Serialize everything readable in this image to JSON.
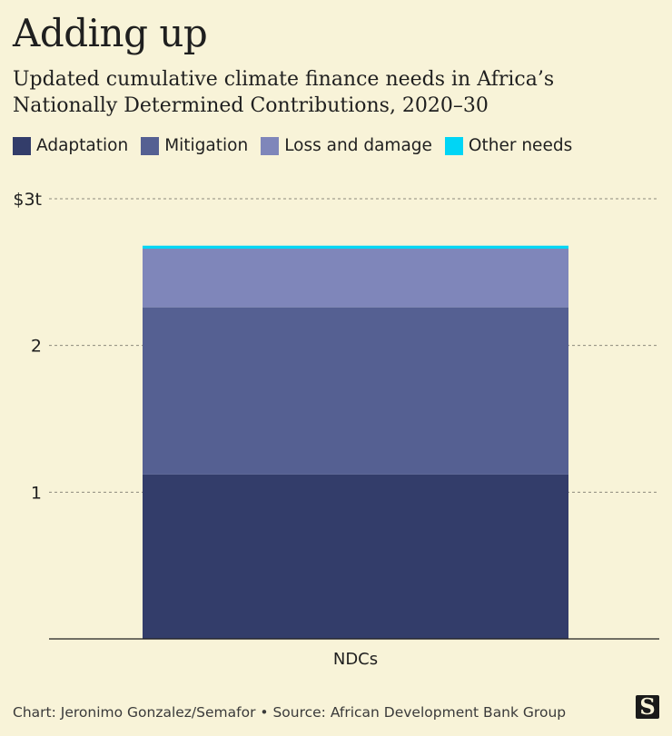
{
  "title": "Adding up",
  "subtitle": "Updated cumulative climate finance needs in Africa’s Nationally Determined Contributions, 2020–30",
  "footer": "Chart: Jeronimo Gonzalez/Semafor • Source: African Development Bank Group",
  "logo": "S",
  "colors": {
    "background": "#f8f3d8",
    "adaptation": "#333d6a",
    "mitigation": "#556092",
    "loss_and_damage": "#7f86ba",
    "other_needs": "#00d5f5"
  },
  "chart_data": {
    "type": "bar",
    "stacked": true,
    "title": "Adding up",
    "categories": [
      "NDCs"
    ],
    "series": [
      {
        "name": "Adaptation",
        "values": [
          1.12
        ],
        "color": "#333d6a"
      },
      {
        "name": "Mitigation",
        "values": [
          1.14
        ],
        "color": "#556092"
      },
      {
        "name": "Loss and damage",
        "values": [
          0.4
        ],
        "color": "#7f86ba"
      },
      {
        "name": "Other needs",
        "values": [
          0.02
        ],
        "color": "#00d5f5"
      }
    ],
    "yticks": [
      {
        "value": 1,
        "label": "1"
      },
      {
        "value": 2,
        "label": "2"
      },
      {
        "value": 3,
        "label": "$3t"
      }
    ],
    "ylim": [
      0,
      3
    ],
    "xlabel": "",
    "ylabel": "",
    "grid": true,
    "unit": "trillion USD"
  }
}
